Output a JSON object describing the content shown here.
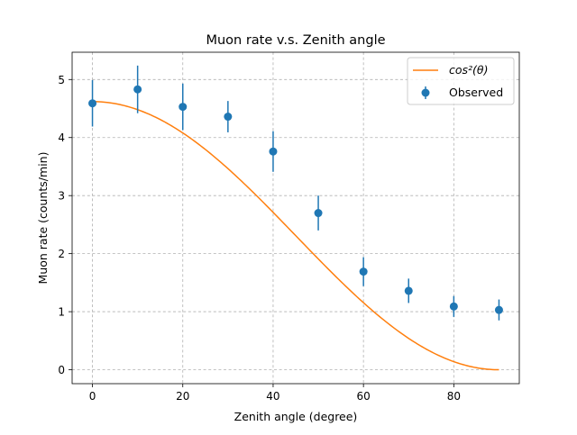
{
  "chart_data": {
    "type": "scatter",
    "title": "Muon rate v.s. Zenith angle",
    "xlabel": "Zenith angle (degree)",
    "ylabel": "Muon rate (counts/min)",
    "xlim": [
      -4.5,
      94.5
    ],
    "ylim": [
      -0.24,
      5.47
    ],
    "xticks": [
      0,
      20,
      40,
      60,
      80
    ],
    "yticks": [
      0,
      1,
      2,
      3,
      4,
      5
    ],
    "grid": true,
    "legend_position": "top-right",
    "series": [
      {
        "name": "cos²(θ)",
        "kind": "line",
        "color": "#ff7f0e",
        "formula": "4.62*cos^2(theta)",
        "amplitude": 4.62,
        "x_range": [
          0,
          90
        ]
      },
      {
        "name": "Observed",
        "kind": "errorbar",
        "color": "#1f77b4",
        "x": [
          0,
          10,
          20,
          30,
          40,
          50,
          60,
          70,
          80,
          90
        ],
        "y": [
          4.59,
          4.83,
          4.53,
          4.36,
          3.76,
          2.7,
          1.69,
          1.36,
          1.09,
          1.03
        ],
        "yerr": [
          0.4,
          0.41,
          0.4,
          0.27,
          0.35,
          0.3,
          0.25,
          0.21,
          0.18,
          0.18
        ]
      }
    ]
  }
}
